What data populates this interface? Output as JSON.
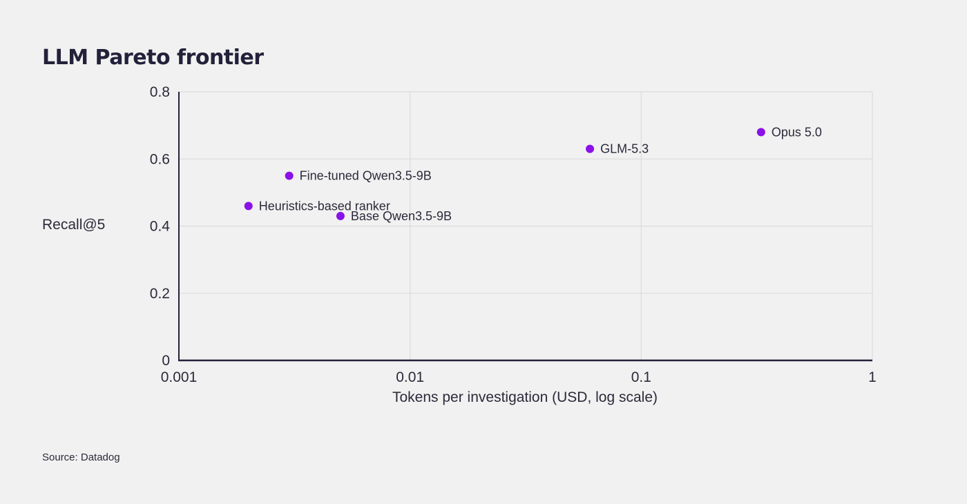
{
  "chart_data": {
    "type": "scatter",
    "title": "LLM Pareto frontier",
    "xlabel": "Tokens per investigation (USD, log scale)",
    "ylabel": "Recall@5",
    "x_scale": "log",
    "xlim": [
      0.001,
      1
    ],
    "ylim": [
      0,
      0.8
    ],
    "x_ticks": [
      0.001,
      0.01,
      0.1,
      1
    ],
    "x_tick_labels": [
      "0.001",
      "0.01",
      "0.1",
      "1"
    ],
    "y_ticks": [
      0,
      0.2,
      0.4,
      0.6,
      0.8
    ],
    "y_tick_labels": [
      "0",
      "0.2",
      "0.4",
      "0.6",
      "0.8"
    ],
    "grid": true,
    "point_color": "#8a11e8",
    "points": [
      {
        "label": "Heuristics-based ranker",
        "x": 0.002,
        "y": 0.46
      },
      {
        "label": "Fine-tuned Qwen3.5-9B",
        "x": 0.003,
        "y": 0.55
      },
      {
        "label": "Base Qwen3.5-9B",
        "x": 0.005,
        "y": 0.43
      },
      {
        "label": "GLM-5.3",
        "x": 0.06,
        "y": 0.63
      },
      {
        "label": "Opus 5.0",
        "x": 0.33,
        "y": 0.68
      }
    ]
  },
  "source": "Source: Datadog"
}
